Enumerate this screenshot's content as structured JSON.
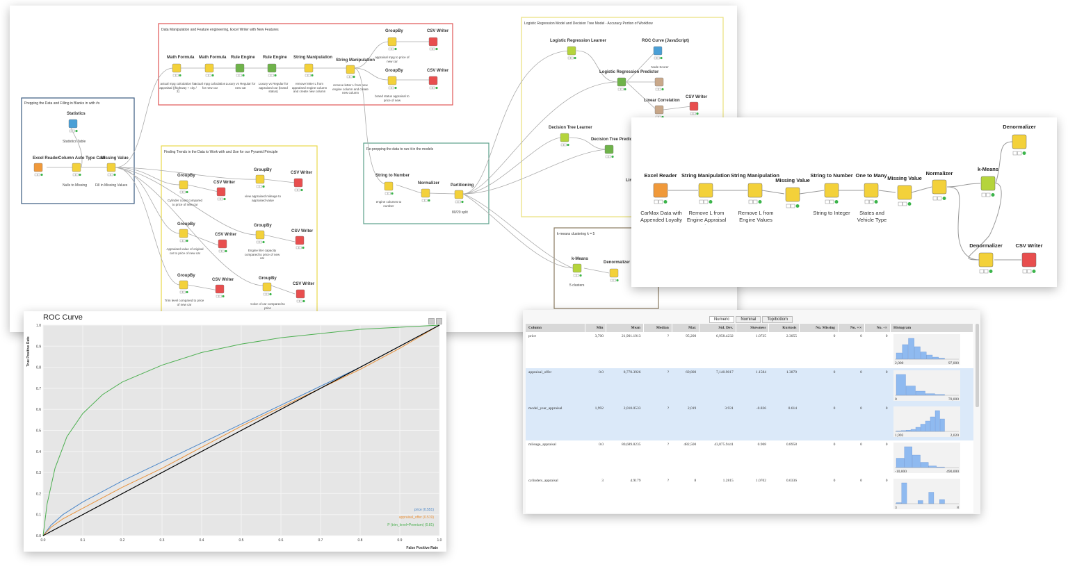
{
  "workflow_main": {
    "annotations": {
      "prep": "Prepping the Data and Filling in Blanks in with #s",
      "feature": "Data Manipulation and Feature engineering, Excel Writer with New Features",
      "trends": "Finding Trends in the Data to Work with and Use for our Pyramid Principle",
      "reprep": "Re-prepping the data to run it in the models",
      "models": "Logistic Regression Model and Decision Tree Model - Accuracy Portion of Workflow",
      "kmeans": "k-means clustering k = 5"
    },
    "nodes": {
      "excel_reader": "Excel Reader",
      "column_auto_type_cast": "Column Auto Type Cast",
      "missing_value": "Missing Value",
      "statistics": "Statistics",
      "nulls_to_missing": "Nulls to Missing",
      "fill_missing": "Fill in Missing Values",
      "statistics_table": "Statistics Table",
      "math_formula": "Math Formula",
      "math_formula_cap1": "actual mpg calculation for appraisal ((highway + city / 2)",
      "math_formula_cap2": "actual mpg calculation for new car",
      "rule_engine": "Rule Engine",
      "rule_engine_cap1": "Luxury vs Regular for new car",
      "rule_engine_cap2": "Luxury vs Regular for appraised car (brand status)",
      "string_manipulation": "String Manipulation",
      "string_manip_cap1": "remove letter L from appraised engine column and create new column",
      "string_manip_cap2": "remove letter L from new engine column and create new column",
      "groupby": "GroupBy",
      "csv_writer": "CSV Writer",
      "groupby_cap_mpg": "appraisal mpg to price of new car",
      "groupby_cap_brand": "brand status appraisal to price of new",
      "groupby_cap_cyl": "Cylinder count compared to price of new car",
      "groupby_cap_mileage": "view appraised mileage to appraised value",
      "groupby_cap_appraised": "Appraised value of original car to price of new car",
      "groupby_cap_engine": "Engine liter capacity compared to price of new car",
      "groupby_cap_trim": "Trim level compared to price of new car",
      "groupby_cap_color": "Color of car compared to price",
      "string_to_number": "String to Number",
      "string_to_number_cap": "engine columns to number",
      "normalizer": "Normalizer",
      "partitioning": "Partitioning",
      "partitioning_cap": "80/20 split",
      "logreg_learner": "Logistic Regression Learner",
      "logreg_predictor": "Logistic Regression Predictor",
      "roc_curve_js": "ROC Curve (JavaScript)",
      "node_scorer": "Node Scorer",
      "linear_correlation": "Linear Correlation",
      "dt_learner": "Decision Tree Learner",
      "dt_predictor": "Decision Tree Predictor",
      "kmeans": "k-Means",
      "kmeans_cap": "5 clusters",
      "denormalizer": "Denormalizer",
      "partial_label": "Line"
    }
  },
  "workflow_zoom": {
    "nodes": [
      {
        "title": "Excel Reader",
        "caption": "CarMax Data with Appended Loyalty"
      },
      {
        "title": "String Manipulation",
        "caption": "Remove L from Engine Appraisal Values"
      },
      {
        "title": "String Manipulation",
        "caption": "Remove L from Engine Values"
      },
      {
        "title": "Missing Value",
        "caption": ""
      },
      {
        "title": "String to Number",
        "caption": "String to Integer"
      },
      {
        "title": "One to Many",
        "caption": "States and Vehicle Type"
      },
      {
        "title": "Missing Value",
        "caption": ""
      },
      {
        "title": "Normalizer",
        "caption": ""
      },
      {
        "title": "k-Means",
        "caption": ""
      },
      {
        "title": "Denormalizer",
        "caption": ""
      },
      {
        "title": "Denormalizer",
        "caption": ""
      },
      {
        "title": "CSV Writer",
        "caption": ""
      }
    ]
  },
  "roc": {
    "title": "ROC Curve",
    "xlabel": "False Positive Rate",
    "ylabel": "True Positive Rate"
  },
  "chart_data": {
    "type": "line",
    "title": "ROC Curve",
    "xlabel": "False Positive Rate",
    "ylabel": "True Positive Rate",
    "xlim": [
      0,
      1
    ],
    "ylim": [
      0,
      1
    ],
    "xticks": [
      "0.0",
      "0.1",
      "0.2",
      "0.3",
      "0.4",
      "0.5",
      "0.6",
      "0.7",
      "0.8",
      "0.9",
      "1.0"
    ],
    "yticks": [
      "0.0",
      "0.1",
      "0.2",
      "0.3",
      "0.4",
      "0.5",
      "0.6",
      "0.7",
      "0.8",
      "0.9",
      "1.0"
    ],
    "grid": true,
    "legend_position": "bottom-right",
    "series": [
      {
        "name": "price (0.551)",
        "color": "#4a86c8",
        "x": [
          0,
          0.02,
          0.05,
          0.1,
          0.2,
          0.3,
          0.4,
          0.5,
          0.6,
          0.7,
          0.8,
          0.9,
          1.0
        ],
        "y": [
          0,
          0.05,
          0.1,
          0.16,
          0.26,
          0.35,
          0.44,
          0.53,
          0.62,
          0.71,
          0.8,
          0.9,
          1.0
        ]
      },
      {
        "name": "appraisal_offer (0.519)",
        "color": "#e8913a",
        "x": [
          0,
          0.02,
          0.05,
          0.1,
          0.2,
          0.3,
          0.4,
          0.5,
          0.6,
          0.7,
          0.8,
          0.9,
          1.0
        ],
        "y": [
          0,
          0.04,
          0.08,
          0.13,
          0.23,
          0.32,
          0.42,
          0.52,
          0.61,
          0.7,
          0.79,
          0.89,
          1.0
        ]
      },
      {
        "name": "P (trim_level=Premium) (0.81)",
        "color": "#4caf50",
        "x": [
          0,
          0.01,
          0.03,
          0.06,
          0.1,
          0.15,
          0.2,
          0.3,
          0.4,
          0.5,
          0.6,
          0.7,
          0.8,
          0.9,
          1.0
        ],
        "y": [
          0,
          0.15,
          0.32,
          0.47,
          0.58,
          0.67,
          0.73,
          0.81,
          0.87,
          0.91,
          0.94,
          0.96,
          0.98,
          0.99,
          1.0
        ]
      },
      {
        "name": "",
        "color": "#000000",
        "x": [
          0,
          1
        ],
        "y": [
          0,
          1
        ]
      }
    ]
  },
  "stats": {
    "tabs": [
      "Numeric",
      "Nominal",
      "Top/bottom"
    ],
    "columns": [
      "Column",
      "Min",
      "Mean",
      "Median",
      "Max",
      "Std. Dev.",
      "Skewness",
      "Kurtosis",
      "No. Missing",
      "No. +∞",
      "No. -∞",
      "Histogram"
    ],
    "rows": [
      {
        "name": "price",
        "min": "3,700",
        "mean": "21,901.1913",
        "median": "?",
        "max": "95,200",
        "std": "6,958.4232",
        "skew": "1.0735",
        "kurt": "2.3055",
        "missing": "0",
        "pinf": "0",
        "ninf": "0",
        "hmin": "2,000",
        "hmax": "97,000",
        "bars": [
          0.3,
          0.7,
          1,
          0.6,
          0.35,
          0.2,
          0.1,
          0.05
        ],
        "selected": false
      },
      {
        "name": "appraisal_offer",
        "min": "0.0",
        "mean": "8,770.3926",
        "median": "?",
        "max": "69,800",
        "std": "7,140.9017",
        "skew": "1.1584",
        "kurt": "1.3879",
        "missing": "0",
        "pinf": "0",
        "ninf": "0",
        "hmin": "0",
        "hmax": "70,000",
        "bars": [
          1,
          0.45,
          0.2,
          0.08,
          0.04
        ],
        "selected": true
      },
      {
        "name": "model_year_appraisal",
        "min": "1,992",
        "mean": "2,010.0533",
        "median": "?",
        "max": "2,019",
        "std": "3.931",
        "skew": "-0.826",
        "kurt": "0.614",
        "missing": "0",
        "pinf": "0",
        "ninf": "0",
        "hmin": "1,992",
        "hmax": "2,020",
        "bars": [
          0.03,
          0.04,
          0.06,
          0.1,
          0.2,
          0.35,
          0.5,
          0.7,
          1,
          0.6
        ],
        "selected": true
      },
      {
        "name": "mileage_appraisal",
        "min": "0.0",
        "mean": "80,689.8235",
        "median": "?",
        "max": "482,500",
        "std": "43,875.9441",
        "skew": "0.908",
        "kurt": "0.8958",
        "missing": "0",
        "pinf": "0",
        "ninf": "0",
        "hmin": "-10,000",
        "hmax": "490,000",
        "bars": [
          0.45,
          1,
          0.6,
          0.25,
          0.08,
          0.03
        ],
        "selected": false
      },
      {
        "name": "cylinders_appraisal",
        "min": "3",
        "mean": "4.9179",
        "median": "?",
        "max": "8",
        "std": "1.2815",
        "skew": "1.0702",
        "kurt": "0.0336",
        "missing": "0",
        "pinf": "0",
        "ninf": "0",
        "hmin": "3",
        "hmax": "8",
        "bars": [
          0.05,
          1,
          0,
          0,
          0.15,
          0,
          0.55,
          0,
          0.2
        ],
        "selected": false
      }
    ]
  }
}
